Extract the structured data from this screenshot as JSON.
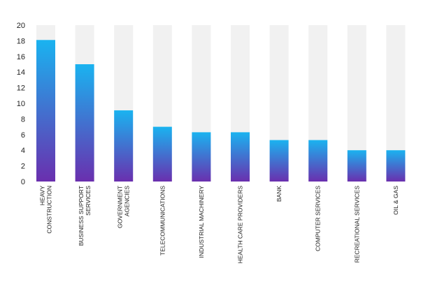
{
  "colors": {
    "bar_top": "#1ab3f0",
    "bar_bottom": "#6a2fae",
    "track": "#f1f1f1",
    "text": "#222222"
  },
  "chart_data": {
    "type": "bar",
    "categories": [
      [
        "HEAVY",
        "CONSTRUCTION"
      ],
      [
        "BUSINESS SUPPORT",
        "SERVICES"
      ],
      [
        "GOVERNMENT",
        "AGENCIES"
      ],
      [
        "TELECOMMUNICATIONS"
      ],
      [
        "INDUSTRIAL MACHINERY"
      ],
      [
        "HEALTH CARE PROVIDERS"
      ],
      [
        "BANK"
      ],
      [
        "COMPUTER SERVICES"
      ],
      [
        "RECREATIONAL SERVICES"
      ],
      [
        "OIL & GAS"
      ]
    ],
    "values": [
      18.1,
      15.0,
      9.1,
      7.0,
      6.3,
      6.3,
      5.3,
      5.3,
      4.0,
      4.0
    ],
    "ylim": [
      0,
      20
    ],
    "yticks": [
      0,
      2,
      4,
      6,
      8,
      10,
      12,
      14,
      16,
      18,
      20
    ],
    "title": "",
    "xlabel": "",
    "ylabel": "",
    "grid": false,
    "legend": "none",
    "background_track": true
  }
}
